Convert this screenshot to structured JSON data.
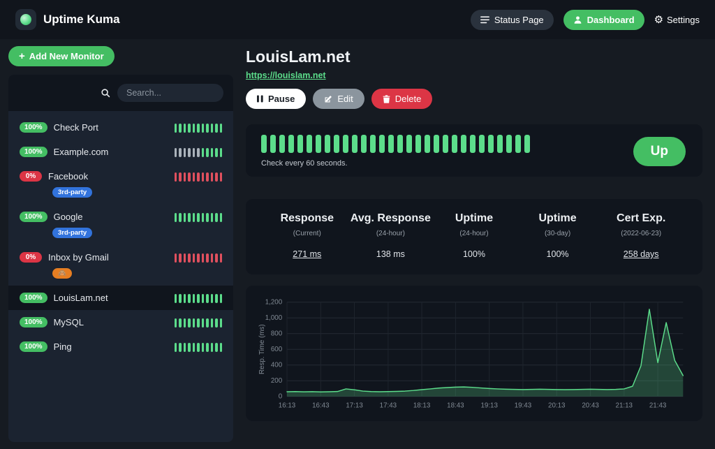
{
  "colors": {
    "accent_green": "#5cdd8b",
    "button_green": "#44be63",
    "danger_red": "#dc3545",
    "beat_gray": "#aab2ba",
    "tag_blue": "#3273dc",
    "tag_orange": "#e67e22"
  },
  "navbar": {
    "brand": "Uptime Kuma",
    "status_page_label": "Status Page",
    "dashboard_label": "Dashboard",
    "settings_label": "Settings"
  },
  "sidebar": {
    "add_monitor_label": "Add New Monitor",
    "search_placeholder": "Search...",
    "monitors": [
      {
        "uptime": "100%",
        "status": "up",
        "name": "Check Port",
        "beats": "ggggggggggg"
      },
      {
        "uptime": "100%",
        "status": "up",
        "name": "Example.com",
        "beats": "xxxxxxggggg"
      },
      {
        "uptime": "0%",
        "status": "down",
        "name": "Facebook",
        "beats": "rrrrrrrrrrr",
        "tags": [
          {
            "label": "3rd-party",
            "color": "#3273dc"
          }
        ]
      },
      {
        "uptime": "100%",
        "status": "up",
        "name": "Google",
        "beats": "ggggggggggg",
        "tags": [
          {
            "label": "3rd-party",
            "color": "#3273dc"
          }
        ]
      },
      {
        "uptime": "0%",
        "status": "down",
        "name": "Inbox by Gmail",
        "beats": "rrrrrrrrrrr",
        "tags": [
          {
            "label": "🙈",
            "color": "#e67e22"
          }
        ]
      },
      {
        "uptime": "100%",
        "status": "up",
        "name": "LouisLam.net",
        "beats": "ggggggggggg",
        "selected": true
      },
      {
        "uptime": "100%",
        "status": "up",
        "name": "MySQL",
        "beats": "ggggggggggg"
      },
      {
        "uptime": "100%",
        "status": "up",
        "name": "Ping",
        "beats": "ggggggggggg"
      }
    ]
  },
  "main": {
    "title": "LouisLam.net",
    "url": "https://louislam.net",
    "pause_label": "Pause",
    "edit_label": "Edit",
    "delete_label": "Delete",
    "heartbeat": {
      "beats": "gggggggggggggggggggggggggggggg",
      "check_text": "Check every 60 seconds.",
      "status_label": "Up"
    },
    "stats": [
      {
        "label": "Response",
        "sub": "(Current)",
        "value": "271 ms",
        "link": true
      },
      {
        "label": "Avg. Response",
        "sub": "(24-hour)",
        "value": "138 ms",
        "link": false
      },
      {
        "label": "Uptime",
        "sub": "(24-hour)",
        "value": "100%",
        "link": false
      },
      {
        "label": "Uptime",
        "sub": "(30-day)",
        "value": "100%",
        "link": false
      },
      {
        "label": "Cert Exp.",
        "sub": "(2022-06-23)",
        "value": "258 days",
        "link": true
      }
    ]
  },
  "chart_data": {
    "type": "area",
    "title": "",
    "ylabel": "Resp. Time (ms)",
    "ylim": [
      0,
      1200
    ],
    "yticks": [
      0,
      200,
      400,
      600,
      800,
      1000,
      1200
    ],
    "ytick_labels": [
      "0",
      "200",
      "400",
      "600",
      "800",
      "1,000",
      "1,200"
    ],
    "xtick_labels": [
      "16:13",
      "16:43",
      "17:13",
      "17:43",
      "18:13",
      "18:43",
      "19:13",
      "19:43",
      "20:13",
      "20:43",
      "21:13",
      "21:43"
    ],
    "xtick_every": 4,
    "grid": true,
    "legend": "none",
    "line_color": "#5cdd8b",
    "fill_color": "rgba(92,221,139,0.25)",
    "values": [
      60,
      62,
      58,
      61,
      57,
      60,
      63,
      96,
      84,
      68,
      62,
      60,
      62,
      64,
      68,
      76,
      86,
      96,
      106,
      113,
      118,
      121,
      116,
      108,
      101,
      96,
      92,
      90,
      88,
      90,
      92,
      90,
      88,
      86,
      88,
      90,
      92,
      90,
      88,
      90,
      96,
      130,
      390,
      1110,
      430,
      940,
      460,
      265
    ]
  }
}
